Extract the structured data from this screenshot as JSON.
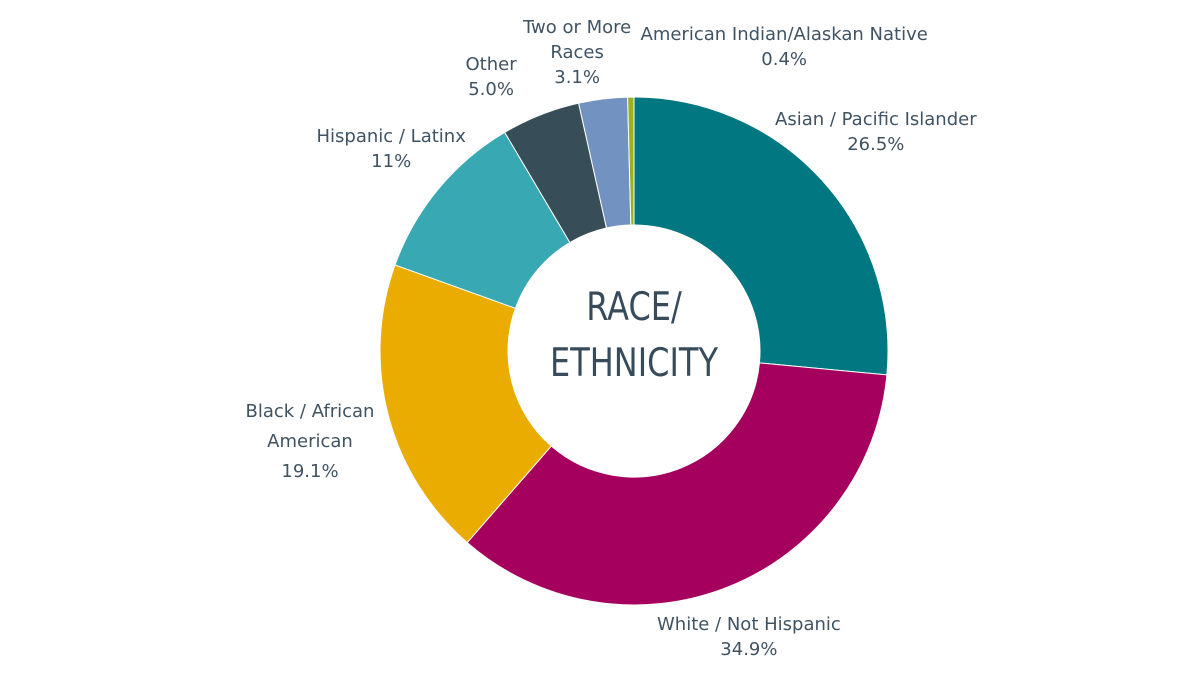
{
  "chart_data": {
    "type": "pie",
    "donut": true,
    "center_label": [
      "RACE/",
      "ETHNICITY"
    ],
    "slices": [
      {
        "name": "Asian / Pacific Islander",
        "value": 26.5,
        "label": "26.5%",
        "color": "#017782"
      },
      {
        "name": "White / Not Hispanic",
        "value": 34.9,
        "label": "34.9%",
        "color": "#a5005d"
      },
      {
        "name": "Black / African American",
        "value": 19.1,
        "label": "19.1%",
        "color": "#eaac00"
      },
      {
        "name": "Hispanic / Latinx",
        "value": 11,
        "label": "11%",
        "color": "#38a8b3"
      },
      {
        "name": "Other",
        "value": 5.0,
        "label": "5.0%",
        "color": "#374e59"
      },
      {
        "name": "Two or More Races",
        "value": 3.1,
        "label": "3.1%",
        "color": "#7293c1"
      },
      {
        "name": "American Indian/Alaskan Native",
        "value": 0.4,
        "label": "0.4%",
        "color": "#9bb21c"
      }
    ],
    "label_lines": {
      "Asian / Pacific Islander": [
        "Asian / Pacific Islander",
        "26.5%"
      ],
      "White / Not Hispanic": [
        "White / Not Hispanic",
        "34.9%"
      ],
      "Black / African American": [
        "Black / African",
        "American",
        "19.1%"
      ],
      "Hispanic / Latinx": [
        "Hispanic / Latinx",
        "11%"
      ],
      "Other": [
        "Other",
        "5.0%"
      ],
      "Two or More Races": [
        "Two or More",
        "Races",
        "3.1%"
      ],
      "American Indian/Alaskan Native": [
        "American Indian/Alaskan Native",
        "0.4%"
      ]
    },
    "start_angle_deg": 0,
    "direction": "clockwise",
    "legend": "none"
  }
}
